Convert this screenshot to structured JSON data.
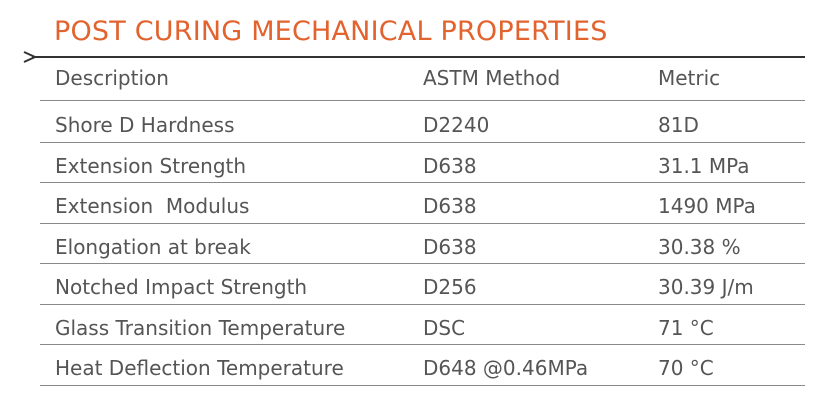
{
  "header": {
    "title": "POST CURING MECHANICAL PROPERTIES"
  },
  "table": {
    "columns": [
      "Description",
      "ASTM Method",
      "Metric"
    ],
    "rows": [
      [
        "Shore D Hardness",
        "D2240",
        "81D"
      ],
      [
        "Extension Strength",
        "D638",
        "31.1 MPa"
      ],
      [
        "Extension  Modulus",
        "D638",
        "1490 MPa"
      ],
      [
        "Elongation at break",
        "D638",
        "30.38 %"
      ],
      [
        "Notched Impact Strength",
        "D256",
        "30.39 J/m"
      ],
      [
        "Glass Transition Temperature",
        "DSC",
        "71 °C"
      ],
      [
        "Heat Deflection Temperature",
        "D648 @0.46MPa",
        "70 °C"
      ]
    ]
  }
}
